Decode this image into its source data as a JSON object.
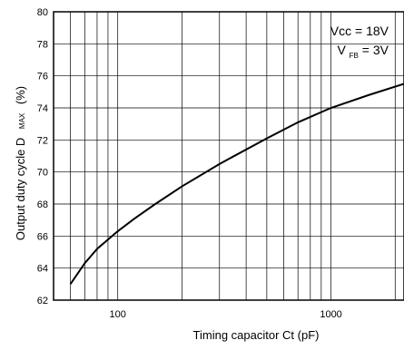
{
  "chart_data": {
    "type": "line",
    "xlabel": "Timing capacitor Ct (pF)",
    "ylabel": {
      "main": "Output duty cycle D",
      "sub": "MAX",
      "unit": "(%)"
    },
    "x_scale": "log",
    "xlim": [
      50,
      2200
    ],
    "ylim": [
      62,
      80
    ],
    "grid": true,
    "x_tick_labels": [
      {
        "value": 100,
        "label": "100"
      },
      {
        "value": 1000,
        "label": "1000"
      }
    ],
    "y_ticks": [
      62,
      64,
      66,
      68,
      70,
      72,
      74,
      76,
      78,
      80
    ],
    "annotations": [
      {
        "text": "Vcc = 18V"
      },
      {
        "main": "V",
        "sub": "FB",
        "rest": " = 3V"
      }
    ],
    "series": [
      {
        "x": [
          60,
          70,
          80,
          100,
          120,
          150,
          200,
          300,
          500,
          700,
          1000,
          1500,
          2200
        ],
        "y": [
          63.0,
          64.3,
          65.2,
          66.3,
          67.1,
          68.0,
          69.1,
          70.5,
          72.1,
          73.1,
          74.0,
          74.8,
          75.5
        ]
      }
    ]
  }
}
